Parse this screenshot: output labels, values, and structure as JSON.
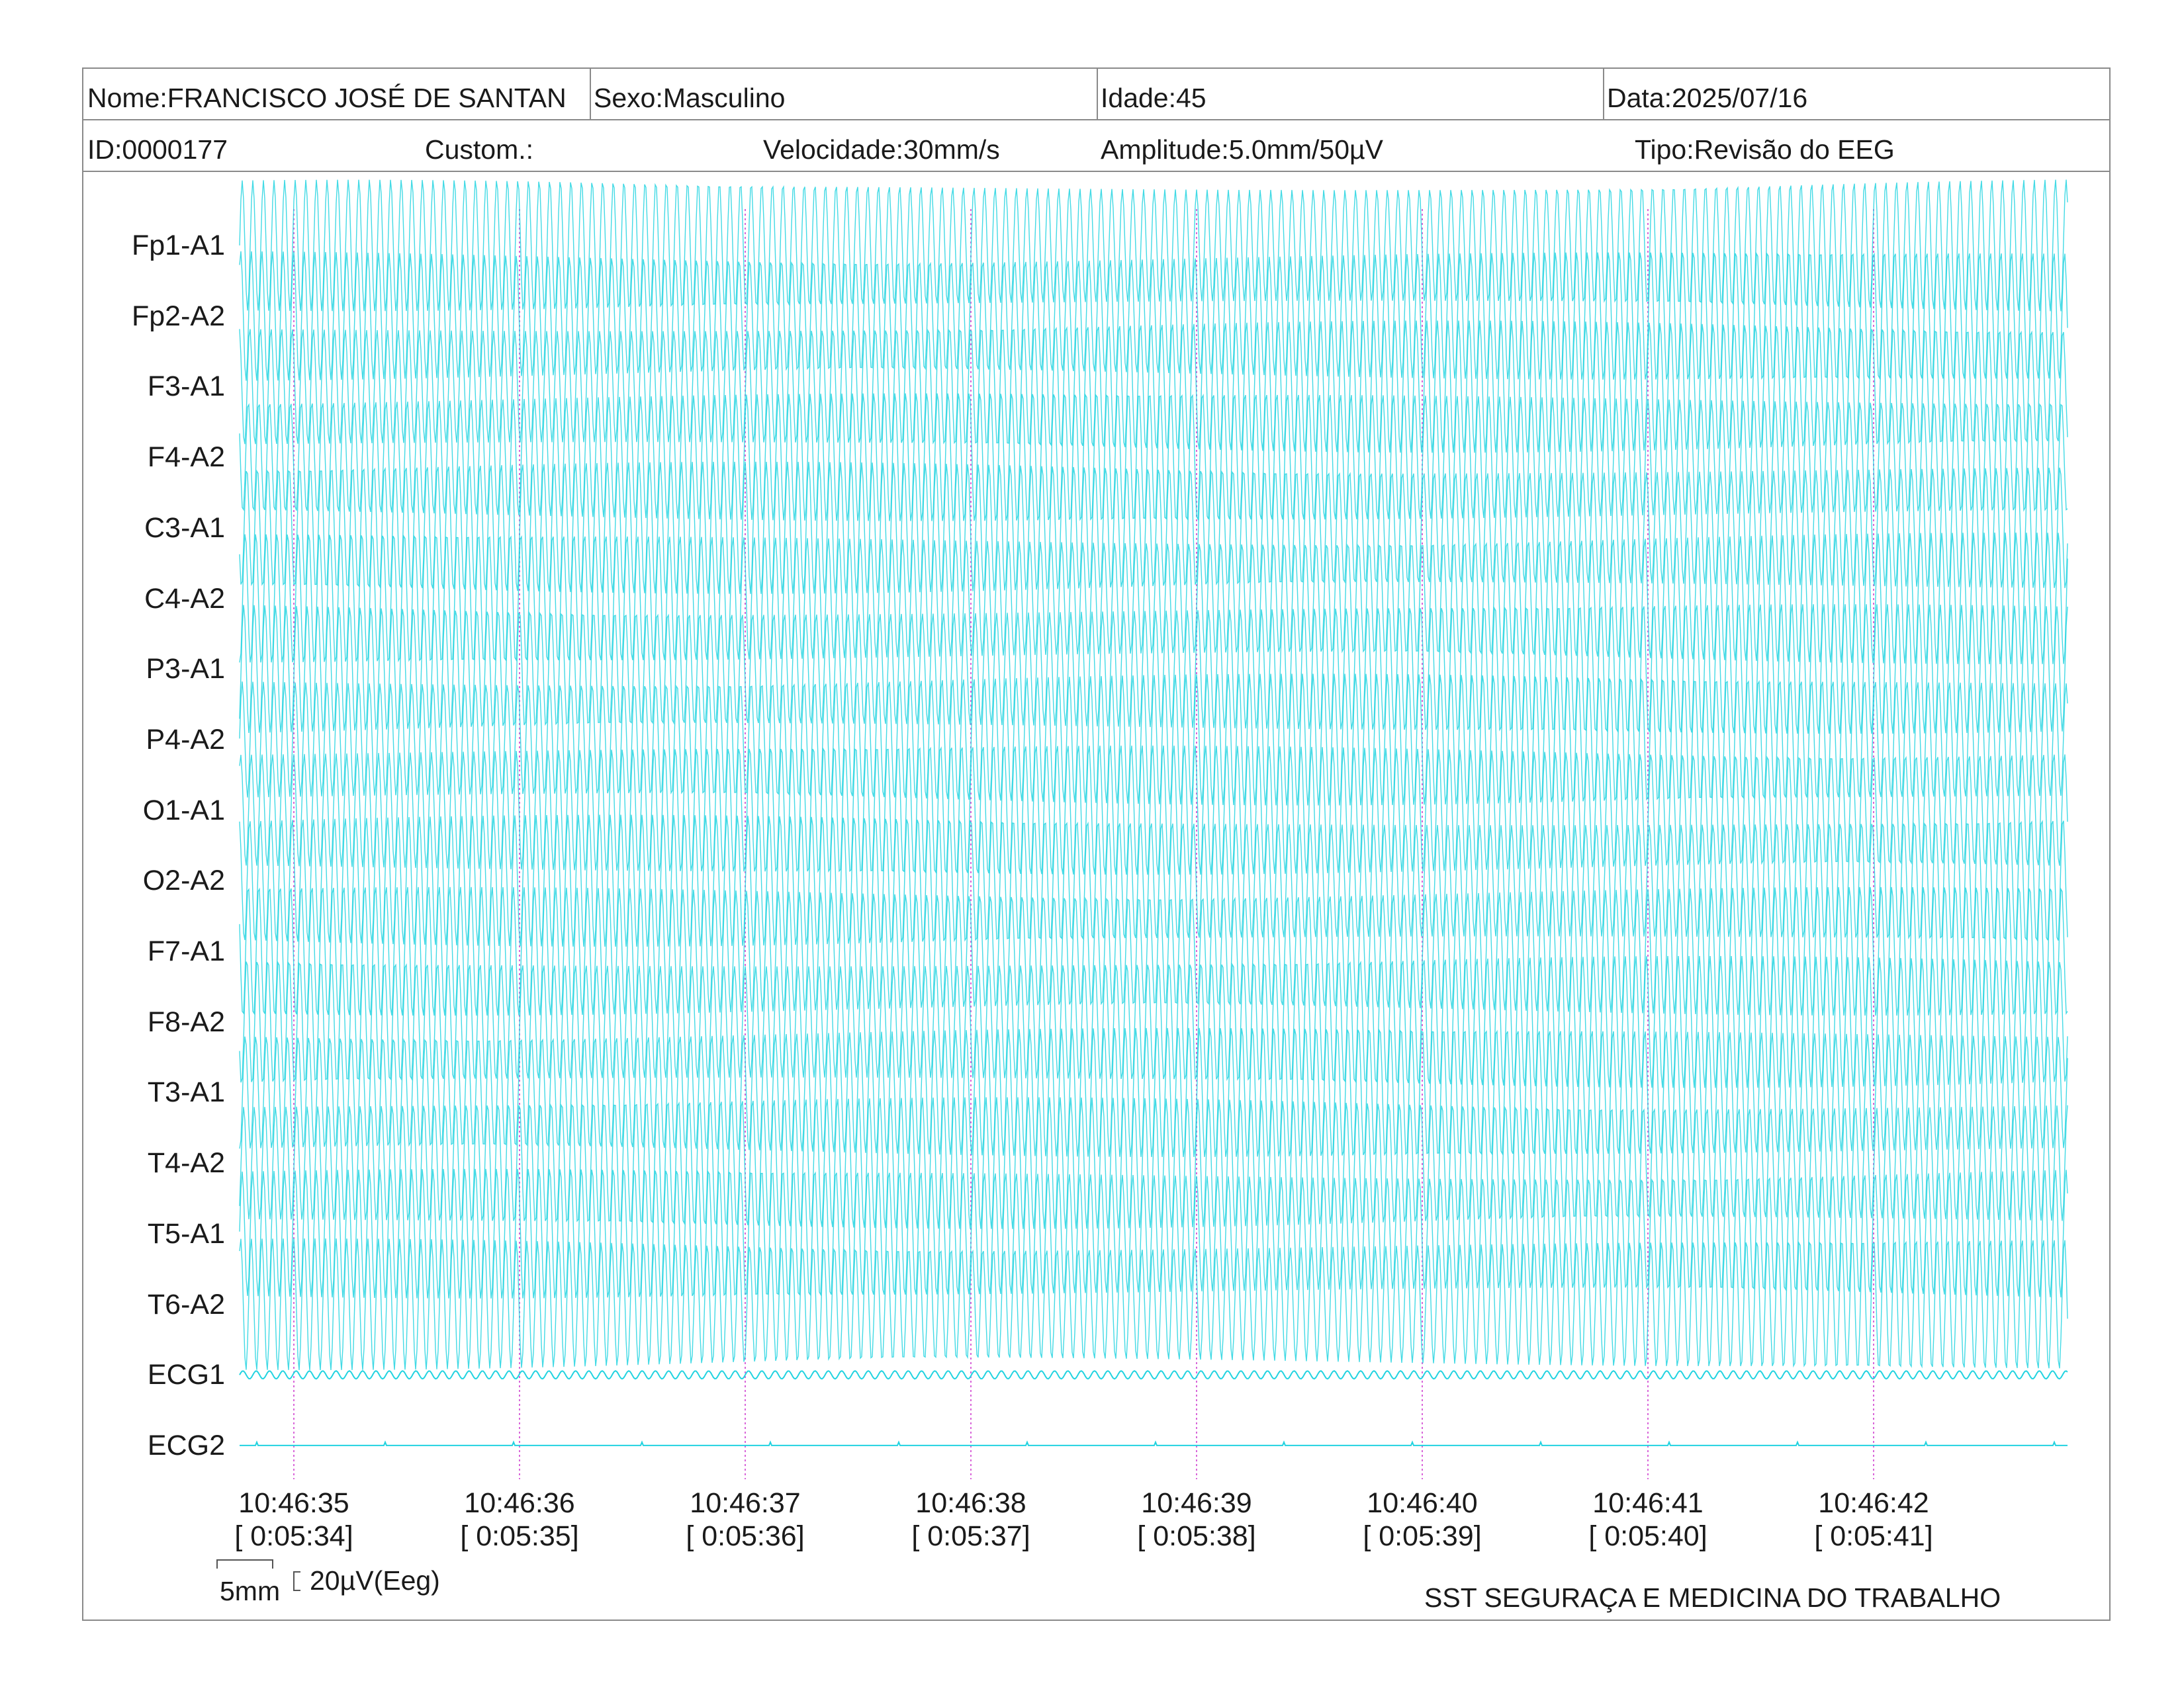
{
  "header": {
    "nome": "Nome:FRANCISCO JOSÉ DE SANTAN",
    "sexo": "Sexo:Masculino",
    "idade": "Idade:45",
    "data": "Data:2025/07/16",
    "id": "ID:0000177",
    "custom": "Custom.:",
    "velocidade": "Velocidade:30mm/s",
    "amplitude": "Amplitude:5.0mm/50µV",
    "tipo": "Tipo:Revisão do EEG"
  },
  "footer": {
    "scale_time": "5mm",
    "scale_amp": "20µV(Eeg)",
    "company": "SST SEGURAÇA E MEDICINA DO TRABALHO"
  },
  "colors": {
    "trace": "#22d3e0",
    "marker": "#d966d9",
    "border": "#8a8a8a"
  },
  "chart_data": {
    "type": "line",
    "channels": [
      "Fp1-A1",
      "Fp2-A2",
      "F3-A1",
      "F4-A2",
      "C3-A1",
      "C4-A2",
      "P3-A1",
      "P4-A2",
      "O1-A1",
      "O2-A2",
      "F7-A1",
      "F8-A2",
      "T3-A1",
      "T4-A2",
      "T5-A1",
      "T6-A2",
      "ECG1",
      "ECG2"
    ],
    "speed_mm_s": 30,
    "amplitude": "5.0mm/50µV",
    "time_ticks": [
      {
        "time": "10:46:35",
        "elapsed": "[ 0:05:34]"
      },
      {
        "time": "10:46:36",
        "elapsed": "[ 0:05:35]"
      },
      {
        "time": "10:46:37",
        "elapsed": "[ 0:05:36]"
      },
      {
        "time": "10:46:38",
        "elapsed": "[ 0:05:37]"
      },
      {
        "time": "10:46:39",
        "elapsed": "[ 0:05:38]"
      },
      {
        "time": "10:46:40",
        "elapsed": "[ 0:05:39]"
      },
      {
        "time": "10:46:41",
        "elapsed": "[ 0:05:40]"
      },
      {
        "time": "10:46:42",
        "elapsed": "[ 0:05:41]"
      }
    ]
  }
}
